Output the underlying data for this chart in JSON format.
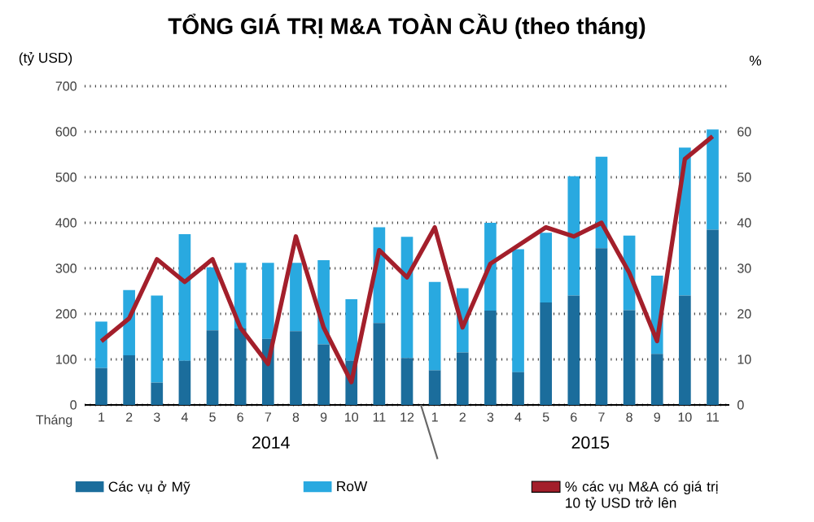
{
  "chart_data": {
    "type": "bar",
    "stacked": true,
    "title": "TỔNG GIÁ TRỊ M&A TOÀN CẦU (theo tháng)",
    "xlabel": "Tháng",
    "ylabel": "(tỷ USD)",
    "y2label": "%",
    "categories": [
      "1",
      "2",
      "3",
      "4",
      "5",
      "6",
      "7",
      "8",
      "9",
      "10",
      "11",
      "12",
      "1",
      "2",
      "3",
      "4",
      "5",
      "6",
      "7",
      "8",
      "9",
      "10",
      "11"
    ],
    "series": [
      {
        "name": "Các vụ ở Mỹ",
        "color": "#1b6d9c",
        "values": [
          81,
          109,
          49,
          97,
          164,
          168,
          145,
          162,
          133,
          97,
          180,
          103,
          76,
          115,
          207,
          72,
          225,
          240,
          344,
          208,
          112,
          240,
          385
        ]
      },
      {
        "name": "RoW",
        "color": "#29a9e0",
        "values": [
          102,
          143,
          191,
          278,
          138,
          144,
          167,
          150,
          185,
          135,
          210,
          266,
          194,
          141,
          193,
          270,
          153,
          262,
          201,
          164,
          172,
          325,
          220
        ]
      },
      {
        "name": "% các vụ M&A có giá trị 10 tỷ USD trở lên",
        "type": "line",
        "axis": "y2",
        "color": "#a31f2b",
        "values": [
          14,
          19,
          32,
          27,
          32,
          17,
          9,
          37,
          17,
          5,
          34,
          28,
          39,
          17,
          31,
          35,
          39,
          37,
          40,
          29,
          14,
          54,
          59
        ]
      }
    ],
    "ylim": [
      0,
      700
    ],
    "yticks": [
      0,
      100,
      200,
      300,
      400,
      500,
      600,
      700
    ],
    "y2lim": [
      0,
      70
    ],
    "y2ticks": [
      0,
      10,
      20,
      30,
      40,
      50,
      60
    ],
    "grid": "y",
    "legend": "bottom",
    "line_style": "solid",
    "marker": "none",
    "annotations": [
      "2014",
      "2015"
    ]
  }
}
